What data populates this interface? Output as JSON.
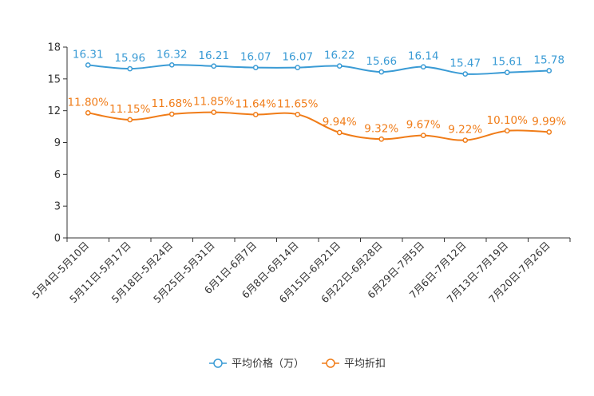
{
  "chart_data": {
    "type": "line",
    "title": "",
    "xlabel": "",
    "ylabel": "",
    "ylim": [
      0,
      18
    ],
    "yticks": [
      0,
      3,
      6,
      9,
      12,
      15,
      18
    ],
    "categories": [
      "5月4日-5月10日",
      "5月11日-5月17日",
      "5月18日-5月24日",
      "5月25日-5月31日",
      "6月1日-6月7日",
      "6月8日-6月14日",
      "6月15日-6月21日",
      "6月22日-6月28日",
      "6月29日-7月5日",
      "7月6日-7月12日",
      "7月13日-7月19日",
      "7月20日-7月26日"
    ],
    "series": [
      {
        "name": "平均价格（万）",
        "color": "#3a9bd5",
        "values": [
          16.31,
          15.96,
          16.32,
          16.21,
          16.07,
          16.07,
          16.22,
          15.66,
          16.14,
          15.47,
          15.61,
          15.78
        ],
        "labels": [
          "16.31",
          "15.96",
          "16.32",
          "16.21",
          "16.07",
          "16.07",
          "16.22",
          "15.66",
          "16.14",
          "15.47",
          "15.61",
          "15.78"
        ]
      },
      {
        "name": "平均折扣",
        "color": "#f07c18",
        "values": [
          11.8,
          11.15,
          11.68,
          11.85,
          11.64,
          11.65,
          9.94,
          9.32,
          9.67,
          9.22,
          10.1,
          9.99
        ],
        "labels": [
          "11.80%",
          "11.15%",
          "11.68%",
          "11.85%",
          "11.64%",
          "11.65%",
          "9.94%",
          "9.32%",
          "9.67%",
          "9.22%",
          "10.10%",
          "9.99%"
        ]
      }
    ],
    "legend": "bottom-center"
  }
}
